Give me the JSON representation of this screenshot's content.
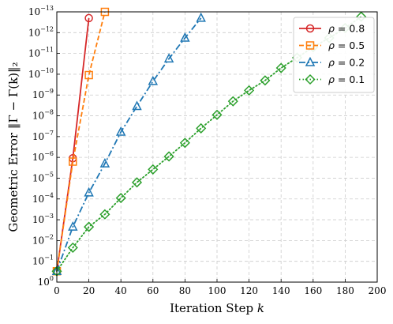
{
  "chart_data": {
    "type": "line",
    "xlabel_text": "Iteration Step ",
    "xlabel_var": "k",
    "ylabel": "Geometric Error ‖Γ − Γ(k)‖₂",
    "xlim": [
      0,
      200
    ],
    "ylim_log10": [
      -13,
      0
    ],
    "yscale": "log",
    "grid": true,
    "legend_position": "top-right",
    "x_ticks": [
      0,
      20,
      40,
      60,
      80,
      100,
      120,
      140,
      160,
      180,
      200
    ],
    "y_tick_exponents": [
      0,
      -1,
      -2,
      -3,
      -4,
      -5,
      -6,
      -7,
      -8,
      -9,
      -10,
      -11,
      -12,
      -13
    ],
    "series": [
      {
        "name": "ρ = 0.8",
        "legend_greek": "ρ",
        "legend_value": "= 0.8",
        "color": "#d62728",
        "linestyle": "solid",
        "marker": "circle",
        "x": [
          0,
          10,
          20
        ],
        "y": [
          0.3,
          1.1e-06,
          2e-13
        ]
      },
      {
        "name": "ρ = 0.5",
        "legend_greek": "ρ",
        "legend_value": "= 0.5",
        "color": "#ff7f0e",
        "linestyle": "dashed",
        "marker": "square",
        "x": [
          0,
          10,
          20,
          30
        ],
        "y": [
          0.3,
          1.6e-06,
          1.1e-10,
          1e-13
        ]
      },
      {
        "name": "ρ = 0.2",
        "legend_greek": "ρ",
        "legend_value": "= 0.2",
        "color": "#1f77b4",
        "linestyle": "dashdot",
        "marker": "triangle",
        "x": [
          0,
          10,
          20,
          30,
          40,
          50,
          60,
          70,
          80,
          90
        ],
        "y": [
          0.3,
          0.0022,
          5e-05,
          2e-06,
          6e-08,
          3.5e-09,
          2.2e-10,
          1.8e-11,
          1.8e-12,
          2e-13
        ]
      },
      {
        "name": "ρ = 0.1",
        "legend_greek": "ρ",
        "legend_value": "= 0.1",
        "color": "#2ca02c",
        "linestyle": "dotted",
        "marker": "diamond",
        "x": [
          0,
          10,
          20,
          30,
          40,
          50,
          60,
          70,
          80,
          90,
          100,
          110,
          120,
          130,
          140,
          150,
          160,
          170,
          180,
          190
        ],
        "y": [
          0.3,
          0.022,
          0.0022,
          0.00055,
          9e-05,
          1.6e-05,
          3.8e-06,
          9e-07,
          2e-07,
          4e-08,
          9e-09,
          2e-09,
          6e-10,
          2e-10,
          5e-11,
          1.6e-11,
          5e-12,
          1.8e-12,
          6e-13,
          1.7e-13
        ]
      }
    ]
  }
}
